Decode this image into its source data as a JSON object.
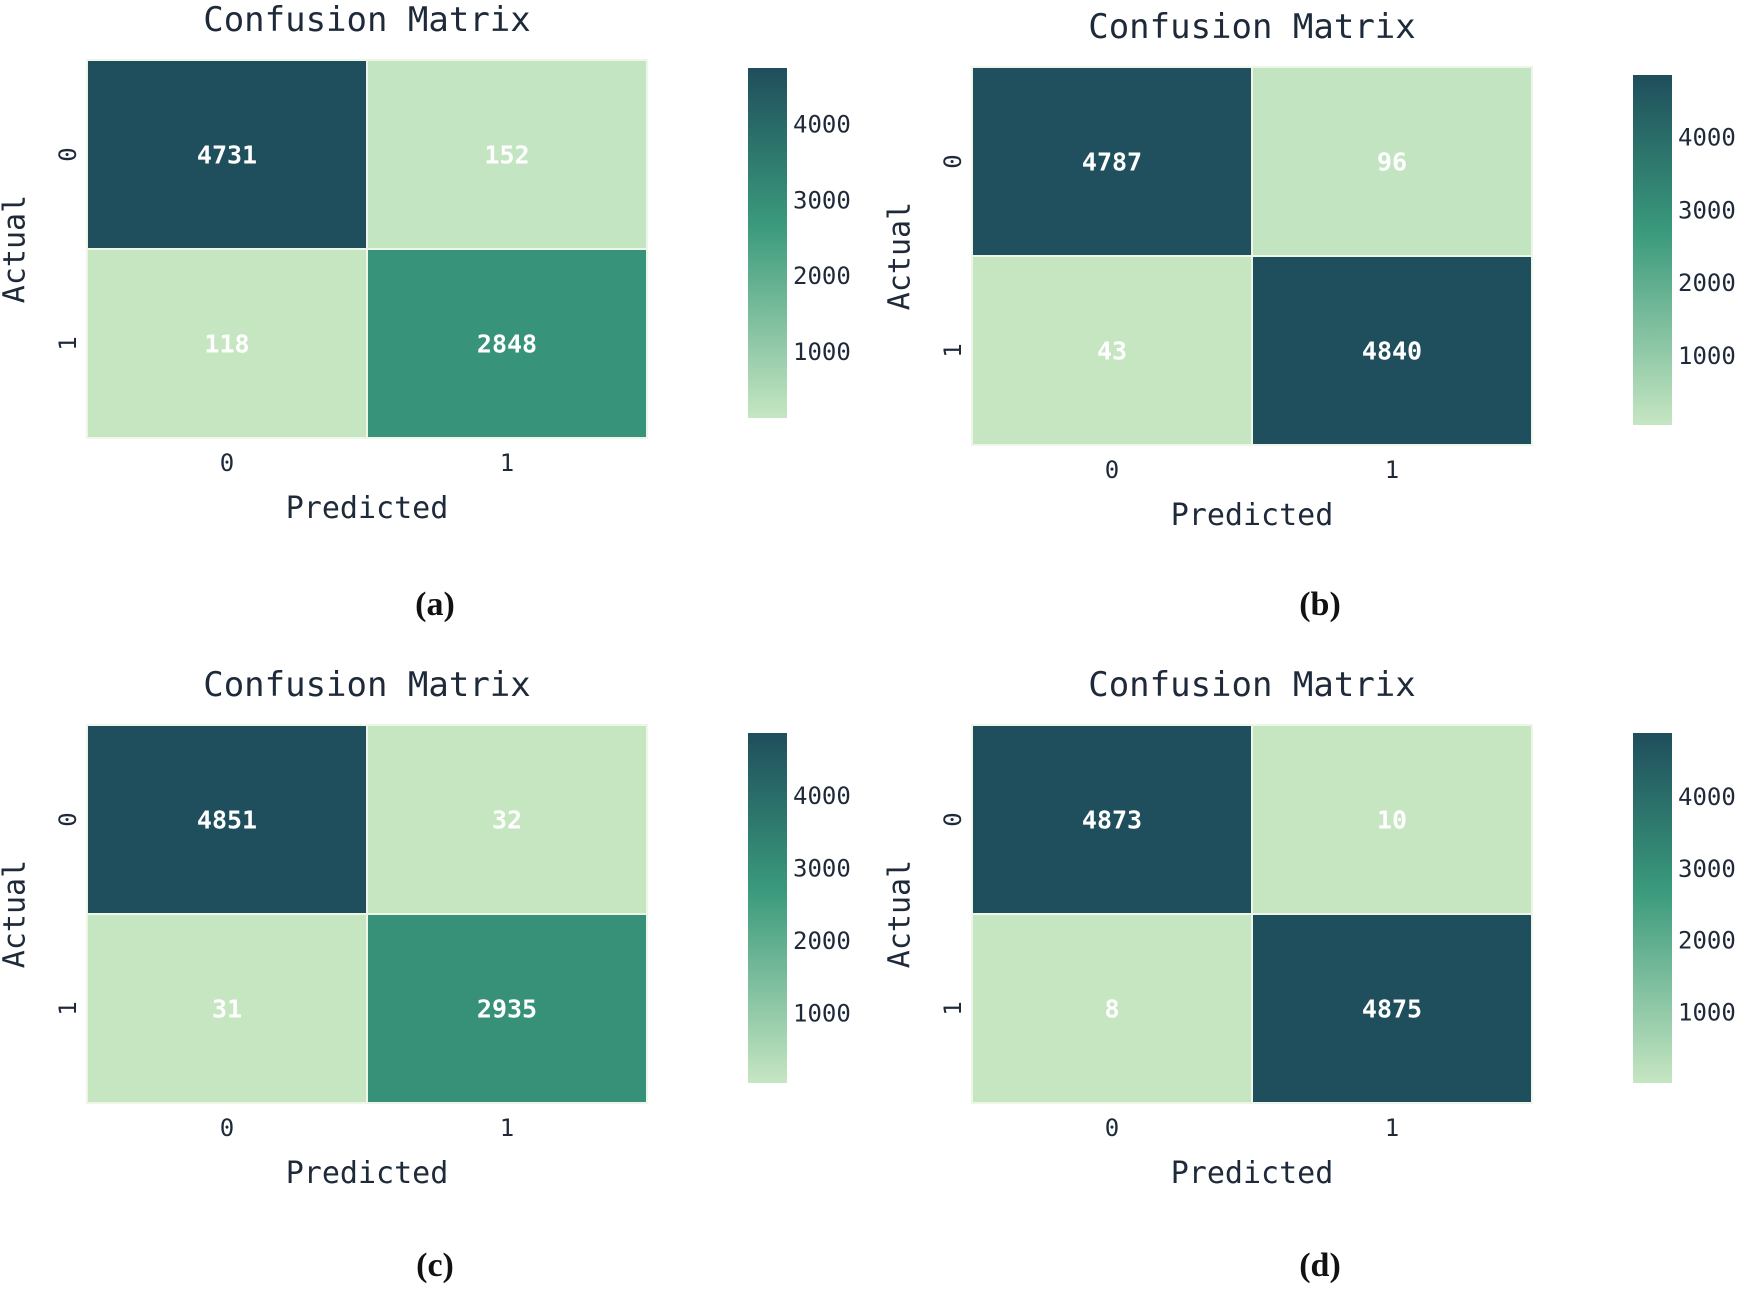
{
  "colors": {
    "low": "#c6e6c2",
    "mid": "#3a9a7c",
    "high": "#1f4e5c",
    "text_dark": "#1e2a3a",
    "cell_text": "#ffffff"
  },
  "chart_data": [
    {
      "type": "heatmap",
      "panel": "(a)",
      "title": "Confusion Matrix",
      "xlabel": "Predicted",
      "ylabel": "Actual",
      "x_categories": [
        "0",
        "1"
      ],
      "y_categories": [
        "0",
        "1"
      ],
      "values": [
        [
          4731,
          152
        ],
        [
          118,
          2848
        ]
      ],
      "colorbar": {
        "ticks": [
          "1000",
          "2000",
          "3000",
          "4000"
        ],
        "tick_values": [
          1000,
          2000,
          3000,
          4000
        ],
        "range": [
          118,
          4731
        ]
      }
    },
    {
      "type": "heatmap",
      "panel": "(b)",
      "title": "Confusion Matrix",
      "xlabel": "Predicted",
      "ylabel": "Actual",
      "x_categories": [
        "0",
        "1"
      ],
      "y_categories": [
        "0",
        "1"
      ],
      "values": [
        [
          4787,
          96
        ],
        [
          43,
          4840
        ]
      ],
      "colorbar": {
        "ticks": [
          "1000",
          "2000",
          "3000",
          "4000"
        ],
        "tick_values": [
          1000,
          2000,
          3000,
          4000
        ],
        "range": [
          43,
          4840
        ]
      }
    },
    {
      "type": "heatmap",
      "panel": "(c)",
      "title": "Confusion Matrix",
      "xlabel": "Predicted",
      "ylabel": "Actual",
      "x_categories": [
        "0",
        "1"
      ],
      "y_categories": [
        "0",
        "1"
      ],
      "values": [
        [
          4851,
          32
        ],
        [
          31,
          2935
        ]
      ],
      "colorbar": {
        "ticks": [
          "1000",
          "2000",
          "3000",
          "4000"
        ],
        "tick_values": [
          1000,
          2000,
          3000,
          4000
        ],
        "range": [
          31,
          4851
        ]
      }
    },
    {
      "type": "heatmap",
      "panel": "(d)",
      "title": "Confusion Matrix",
      "xlabel": "Predicted",
      "ylabel": "Actual",
      "x_categories": [
        "0",
        "1"
      ],
      "y_categories": [
        "0",
        "1"
      ],
      "values": [
        [
          4873,
          10
        ],
        [
          8,
          4875
        ]
      ],
      "colorbar": {
        "ticks": [
          "1000",
          "2000",
          "3000",
          "4000"
        ],
        "tick_values": [
          1000,
          2000,
          3000,
          4000
        ],
        "range": [
          8,
          4875
        ]
      }
    }
  ]
}
